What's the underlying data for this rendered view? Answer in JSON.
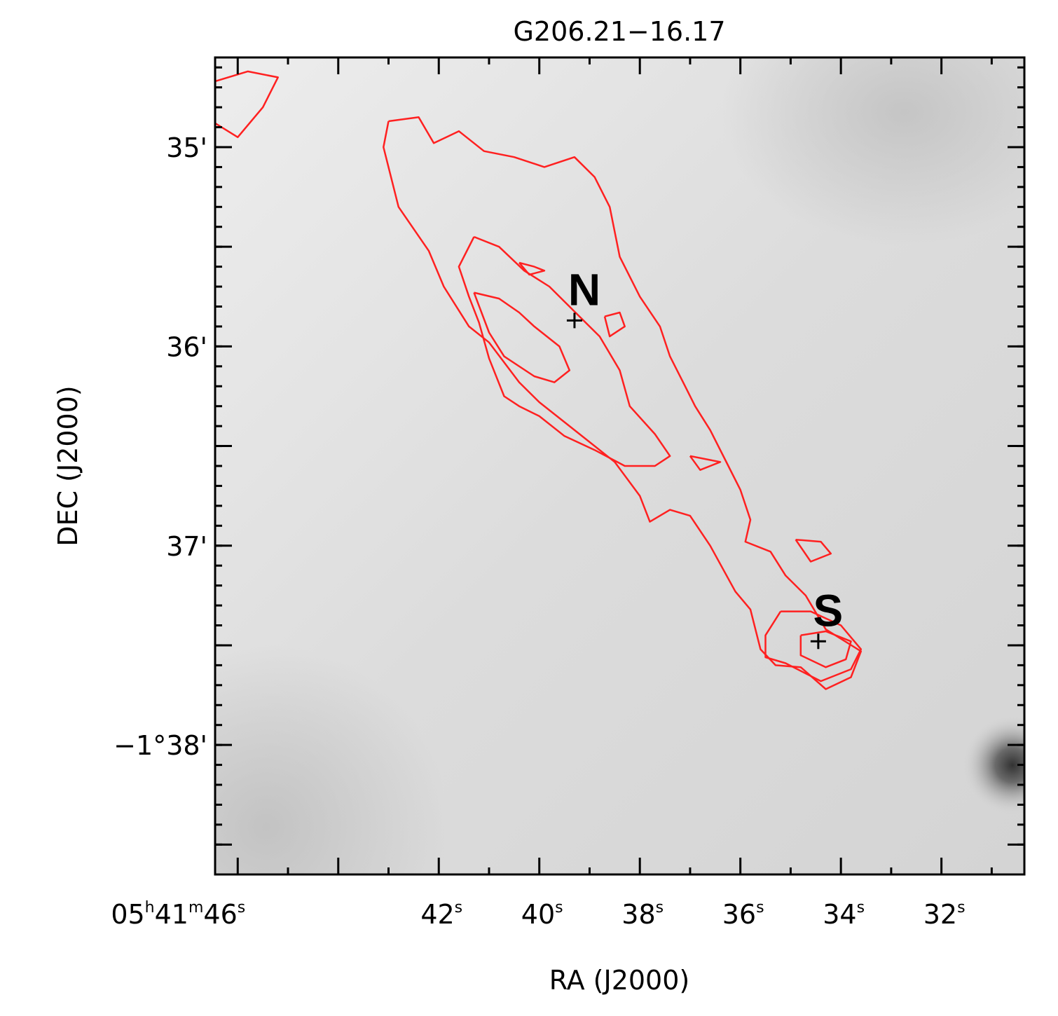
{
  "chart_data": {
    "type": "contour",
    "title": "G206.21−16.17",
    "xlabel": "RA (J2000)",
    "ylabel": "DEC (J2000)",
    "xlim_sec": [
      46.45,
      30.35
    ],
    "ylim_arcmin": [
      34.55,
      38.65
    ],
    "ra_ticks": [
      {
        "sec": 46,
        "h": "05",
        "m": "41",
        "s": "46"
      },
      {
        "sec": 42,
        "s": "42"
      },
      {
        "sec": 40,
        "s": "40"
      },
      {
        "sec": 38,
        "s": "38"
      },
      {
        "sec": 36,
        "s": "36"
      },
      {
        "sec": 34,
        "s": "34"
      },
      {
        "sec": 32,
        "s": "32"
      }
    ],
    "ra_minor_ticks": [
      44
    ],
    "dec_ticks": [
      {
        "arcmin": 35,
        "label": "35'"
      },
      {
        "arcmin": 36,
        "label": "36'"
      },
      {
        "arcmin": 37,
        "label": "37'"
      },
      {
        "arcmin": 38,
        "label": "−1°38'"
      }
    ],
    "dec_minor_ticks": [
      35.5,
      36.5,
      37.5,
      38.5
    ],
    "sources": [
      {
        "name": "N",
        "ra_sec": 39.3,
        "dec_arcmin": 35.87
      },
      {
        "name": "S",
        "ra_sec": 34.45,
        "dec_arcmin": 37.48
      }
    ],
    "contour_color": "#ff2020",
    "contours": [
      {
        "level": 1,
        "points": [
          [
            43.0,
            34.87
          ],
          [
            42.4,
            34.85
          ],
          [
            42.1,
            34.98
          ],
          [
            41.6,
            34.92
          ],
          [
            41.1,
            35.02
          ],
          [
            40.5,
            35.05
          ],
          [
            39.9,
            35.1
          ],
          [
            39.3,
            35.05
          ],
          [
            38.9,
            35.15
          ],
          [
            38.6,
            35.3
          ],
          [
            38.4,
            35.55
          ],
          [
            38.0,
            35.75
          ],
          [
            37.6,
            35.9
          ],
          [
            37.4,
            36.05
          ],
          [
            37.1,
            36.2
          ],
          [
            36.9,
            36.3
          ],
          [
            36.6,
            36.42
          ],
          [
            36.3,
            36.57
          ],
          [
            36.0,
            36.72
          ],
          [
            35.8,
            36.87
          ],
          [
            35.9,
            36.98
          ],
          [
            35.4,
            37.03
          ],
          [
            35.1,
            37.15
          ],
          [
            34.7,
            37.25
          ],
          [
            34.3,
            37.42
          ],
          [
            33.6,
            37.53
          ],
          [
            33.8,
            37.66
          ],
          [
            34.3,
            37.72
          ],
          [
            34.8,
            37.61
          ],
          [
            35.3,
            37.6
          ],
          [
            35.6,
            37.52
          ],
          [
            35.8,
            37.32
          ],
          [
            36.1,
            37.23
          ],
          [
            36.6,
            37.0
          ],
          [
            37.0,
            36.85
          ],
          [
            37.4,
            36.82
          ],
          [
            37.8,
            36.88
          ],
          [
            38.0,
            36.75
          ],
          [
            38.5,
            36.58
          ],
          [
            39.4,
            36.4
          ],
          [
            40.0,
            36.28
          ],
          [
            40.4,
            36.18
          ],
          [
            41.0,
            35.98
          ],
          [
            41.4,
            35.9
          ],
          [
            41.9,
            35.7
          ],
          [
            42.2,
            35.52
          ],
          [
            42.8,
            35.3
          ],
          [
            43.1,
            35.0
          ],
          [
            43.0,
            34.87
          ]
        ]
      },
      {
        "level": 2,
        "points": [
          [
            41.3,
            35.45
          ],
          [
            40.8,
            35.5
          ],
          [
            40.3,
            35.62
          ],
          [
            39.8,
            35.7
          ],
          [
            39.2,
            35.85
          ],
          [
            38.8,
            35.95
          ],
          [
            38.4,
            36.12
          ],
          [
            38.2,
            36.3
          ],
          [
            37.7,
            36.44
          ],
          [
            37.4,
            36.55
          ],
          [
            37.7,
            36.6
          ],
          [
            38.3,
            36.6
          ],
          [
            38.9,
            36.52
          ],
          [
            39.5,
            36.45
          ],
          [
            40.0,
            36.35
          ],
          [
            40.4,
            36.3
          ],
          [
            40.7,
            36.25
          ],
          [
            41.0,
            36.06
          ],
          [
            41.2,
            35.88
          ],
          [
            41.4,
            35.75
          ],
          [
            41.6,
            35.6
          ],
          [
            41.3,
            35.45
          ]
        ]
      },
      {
        "level": 3,
        "points": [
          [
            41.3,
            35.73
          ],
          [
            40.8,
            35.76
          ],
          [
            40.4,
            35.83
          ],
          [
            40.1,
            35.9
          ],
          [
            39.6,
            36.0
          ],
          [
            39.4,
            36.12
          ],
          [
            39.7,
            36.18
          ],
          [
            40.1,
            36.15
          ],
          [
            40.7,
            36.05
          ],
          [
            41.0,
            35.93
          ],
          [
            41.3,
            35.73
          ]
        ]
      },
      {
        "level": 2,
        "points": [
          [
            35.2,
            37.33
          ],
          [
            34.6,
            37.33
          ],
          [
            34.0,
            37.4
          ],
          [
            33.6,
            37.52
          ],
          [
            33.8,
            37.62
          ],
          [
            34.4,
            37.68
          ],
          [
            35.1,
            37.59
          ],
          [
            35.5,
            37.56
          ],
          [
            35.5,
            37.45
          ],
          [
            35.2,
            37.33
          ]
        ]
      },
      {
        "level": 3,
        "points": [
          [
            34.8,
            37.45
          ],
          [
            34.3,
            37.43
          ],
          [
            33.8,
            37.48
          ],
          [
            33.9,
            37.57
          ],
          [
            34.3,
            37.61
          ],
          [
            34.8,
            37.55
          ],
          [
            34.8,
            37.45
          ]
        ]
      },
      {
        "level": 1,
        "points": [
          [
            46.45,
            34.67
          ],
          [
            45.8,
            34.62
          ],
          [
            45.2,
            34.65
          ],
          [
            45.5,
            34.8
          ],
          [
            46.0,
            34.95
          ],
          [
            46.45,
            34.88
          ]
        ]
      },
      {
        "level": 1,
        "points": [
          [
            40.4,
            35.58
          ],
          [
            40.1,
            35.6
          ],
          [
            39.9,
            35.62
          ],
          [
            40.2,
            35.64
          ],
          [
            40.4,
            35.58
          ]
        ]
      },
      {
        "level": 1,
        "points": [
          [
            38.7,
            35.85
          ],
          [
            38.4,
            35.83
          ],
          [
            38.3,
            35.9
          ],
          [
            38.6,
            35.95
          ],
          [
            38.7,
            35.85
          ]
        ]
      },
      {
        "level": 1,
        "points": [
          [
            37.0,
            36.55
          ],
          [
            36.6,
            36.57
          ],
          [
            36.4,
            36.58
          ],
          [
            36.8,
            36.62
          ],
          [
            37.0,
            36.55
          ]
        ]
      },
      {
        "level": 1,
        "points": [
          [
            34.9,
            36.97
          ],
          [
            34.4,
            36.98
          ],
          [
            34.2,
            37.04
          ],
          [
            34.6,
            37.08
          ],
          [
            34.9,
            36.97
          ]
        ]
      }
    ]
  }
}
